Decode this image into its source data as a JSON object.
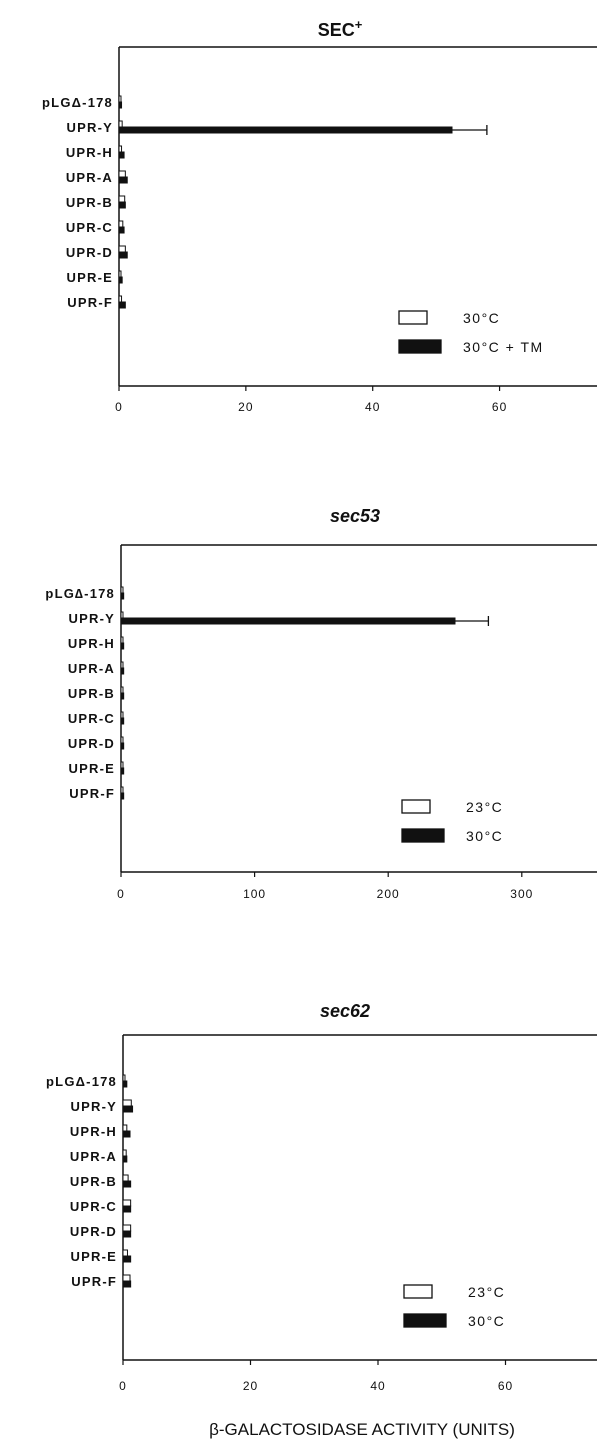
{
  "figure": {
    "xlabel": "β-GALACTOSIDASE ACTIVITY (UNITS)",
    "colors": {
      "ink": "#111111",
      "open_fill": "#ffffff"
    }
  },
  "chart_data": [
    {
      "type": "bar",
      "orientation": "horizontal",
      "title": "SEC",
      "title_superscript": "+",
      "title_style": "bold",
      "categories": [
        "pLGΔ-178",
        "UPR-Y",
        "UPR-H",
        "UPR-A",
        "UPR-B",
        "UPR-C",
        "UPR-D",
        "UPR-E",
        "UPR-F"
      ],
      "series": [
        {
          "name": "30°C",
          "fill": "open",
          "values": [
            0.2,
            0.5,
            0.4,
            1.0,
            0.9,
            0.6,
            1.0,
            0.3,
            0.4
          ]
        },
        {
          "name": "30°C + TM",
          "fill": "solid",
          "values": [
            0.4,
            52.5,
            0.8,
            1.3,
            1.0,
            0.8,
            1.3,
            0.5,
            1.0
          ],
          "errors": [
            0,
            5.5,
            0,
            0,
            0,
            0,
            0,
            0,
            0
          ]
        }
      ],
      "xlim": [
        0,
        75
      ],
      "xticks": [
        0,
        20,
        40,
        60
      ],
      "legend": "bottom-right"
    },
    {
      "type": "bar",
      "orientation": "horizontal",
      "title": "sec53",
      "title_style": "bold-italic",
      "categories": [
        "pLG∆-178",
        "UPR-Y",
        "UPR-H",
        "UPR-A",
        "UPR-B",
        "UPR-C",
        "UPR-D",
        "UPR-E",
        "UPR-F"
      ],
      "series": [
        {
          "name": "23°C",
          "fill": "open",
          "values": [
            1,
            1,
            1,
            1,
            1,
            1,
            1,
            1,
            1
          ]
        },
        {
          "name": "30°C",
          "fill": "solid",
          "values": [
            2,
            250,
            2,
            2,
            2,
            2,
            2,
            2,
            2
          ],
          "errors": [
            0,
            25,
            0,
            0,
            0,
            0,
            0,
            0,
            0
          ]
        }
      ],
      "xlim": [
        0,
        340
      ],
      "xticks": [
        0,
        100,
        200,
        300
      ],
      "legend": "bottom-right"
    },
    {
      "type": "bar",
      "orientation": "horizontal",
      "title": "sec62",
      "title_style": "bold-italic",
      "categories": [
        "pLGΔ-178",
        "UPR-Y",
        "UPR-H",
        "UPR-A",
        "UPR-B",
        "UPR-C",
        "UPR-D",
        "UPR-E",
        "UPR-F"
      ],
      "series": [
        {
          "name": "23°C",
          "fill": "open",
          "values": [
            0.3,
            1.3,
            0.6,
            0.5,
            0.8,
            1.2,
            1.2,
            0.7,
            1.1
          ]
        },
        {
          "name": "30°C",
          "fill": "solid",
          "values": [
            0.6,
            1.5,
            1.1,
            0.6,
            1.2,
            1.2,
            1.2,
            1.2,
            1.2
          ]
        }
      ],
      "xlim": [
        0,
        75
      ],
      "xticks": [
        0,
        20,
        40,
        60
      ],
      "legend": "bottom-right"
    }
  ]
}
